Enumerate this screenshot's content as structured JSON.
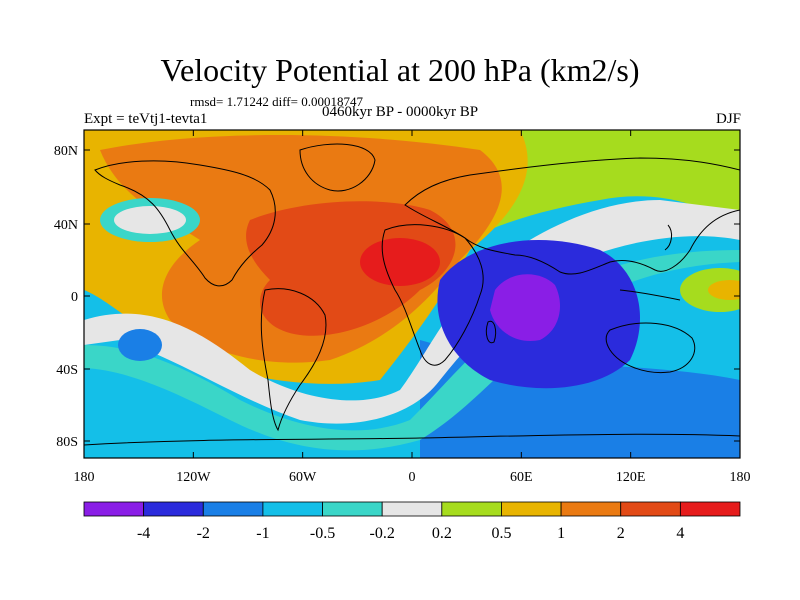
{
  "header": {
    "title": "Velocity Potential at 200 hPa (km2/s)",
    "stats": "rmsd= 1.71242 diff= 0.00018747",
    "experiment": "Expt = teVtj1-tevta1",
    "period": "0460kyr BP - 0000kyr BP",
    "season": "DJF"
  },
  "axes": {
    "lat_ticks": [
      "80N",
      "40N",
      "0",
      "40S",
      "80S"
    ],
    "lon_ticks": [
      "180",
      "120W",
      "60W",
      "0",
      "60E",
      "120E",
      "180"
    ]
  },
  "colorbar": {
    "colors": [
      "#8a1ee6",
      "#2b2bdc",
      "#1a7fe6",
      "#14bfe8",
      "#3ad6c8",
      "#e6e6e6",
      "#a6dc1e",
      "#e8b400",
      "#ea7a12",
      "#e24a16",
      "#e61c1c"
    ],
    "labels": [
      "-4",
      "-2",
      "-1",
      "-0.5",
      "-0.2",
      "0.2",
      "0.5",
      "1",
      "2",
      "4"
    ]
  },
  "map_data": {
    "type": "contour-map",
    "variable": "velocity potential",
    "level_hPa": 200,
    "units": "km2/s",
    "lon_range": [
      -180,
      180
    ],
    "lat_range": [
      -90,
      90
    ],
    "features": [
      {
        "region": "central Africa / Sahara",
        "level": 4
      },
      {
        "region": "South America / Atlantic",
        "level": 2
      },
      {
        "region": "western Indian Ocean",
        "level": -4
      },
      {
        "region": "Indian Ocean basin",
        "level": -2
      },
      {
        "region": "southern Pacific",
        "level": -0.5
      }
    ]
  }
}
